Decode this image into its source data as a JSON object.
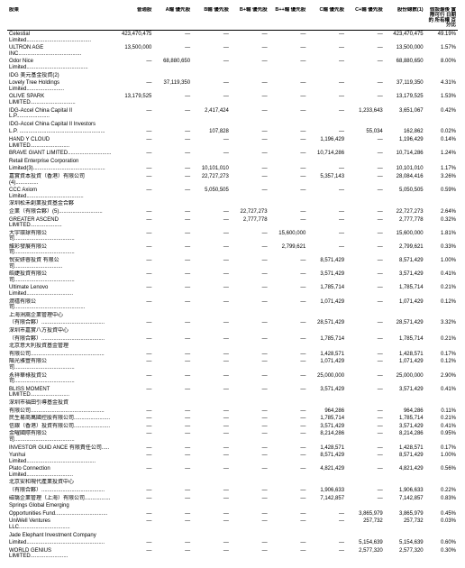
{
  "headers": {
    "name": "股東",
    "ordinary": "普通股",
    "a_pref": "A輪\n優先股",
    "b_pref": "B輪\n優先股",
    "bplus_pref": "B+輪\n優先股",
    "bplusplus_pref": "B++輪\n優先股",
    "c_pref": "C輪\n優先股",
    "cplus_pref": "C+輪\n優先股",
    "total": "股份總數(1)",
    "pct": "假設最後\n實際可行\n日期的\n所有權\n百分比"
  },
  "rows": [
    {
      "name": "Celestial Limited...........................................",
      "ord": "423,470,475",
      "a": "—",
      "b": "—",
      "bp": "—",
      "bpp": "—",
      "c": "—",
      "cp": "—",
      "tot": "423,470,475",
      "pct": "49.19%"
    },
    {
      "name": "ULTRON AGE INC..........................................",
      "ord": "13,500,000",
      "a": "—",
      "b": "—",
      "bp": "—",
      "bpp": "—",
      "c": "—",
      "cp": "—",
      "tot": "13,500,000",
      "pct": "1.57%"
    },
    {
      "name": "Odor Nice Limited.........................................",
      "ord": "—",
      "a": "68,880,650",
      "b": "—",
      "bp": "—",
      "bpp": "—",
      "c": "—",
      "cp": "—",
      "tot": "68,880,650",
      "pct": "8.00%"
    },
    {
      "name": "IDG 美元基金投資(2)",
      "ord": "",
      "a": "",
      "b": "",
      "bp": "",
      "bpp": "",
      "c": "",
      "cp": "",
      "tot": "",
      "pct": ""
    },
    {
      "name": "Lovely Tree Holdings Limited.........................",
      "ord": "—",
      "a": "37,119,350",
      "b": "—",
      "bp": "—",
      "bpp": "—",
      "c": "—",
      "cp": "—",
      "tot": "37,119,350",
      "pct": "4.31%"
    },
    {
      "name": "OLIVE SPARK LIMITED..............................",
      "ord": "13,179,525",
      "a": "—",
      "b": "—",
      "bp": "—",
      "bpp": "—",
      "c": "—",
      "cp": "—",
      "tot": "13,179,525",
      "pct": "1.53%"
    },
    {
      "name": "IDG-Accel China Capital II L.P......................",
      "ord": "—",
      "a": "—",
      "b": "2,417,424",
      "bp": "—",
      "bpp": "—",
      "c": "—",
      "cp": "1,233,643",
      "tot": "3,651,067",
      "pct": "0.42%"
    },
    {
      "name": "IDG-Accel China Capital II Investors",
      "ord": "",
      "a": "",
      "b": "",
      "bp": "",
      "bpp": "",
      "c": "",
      "cp": "",
      "tot": "",
      "pct": ""
    },
    {
      "name": "  L.P. .........................................................",
      "ord": "—",
      "a": "—",
      "b": "107,828",
      "bp": "—",
      "bpp": "—",
      "c": "—",
      "cp": "55,034",
      "tot": "162,862",
      "pct": "0.02%"
    },
    {
      "name": "HAND Y CLOUD LIMITED..........................",
      "ord": "—",
      "a": "—",
      "b": "—",
      "bp": "—",
      "bpp": "—",
      "c": "1,196,429",
      "cp": "—",
      "tot": "1,196,429",
      "pct": "0.14%"
    },
    {
      "name": "BRAVE GIANT LIMITED.............................",
      "ord": "—",
      "a": "—",
      "b": "—",
      "bp": "—",
      "bpp": "—",
      "c": "10,714,286",
      "cp": "—",
      "tot": "10,714,286",
      "pct": "1.24%"
    },
    {
      "name": "Retail Enterprise Corporation",
      "ord": "",
      "a": "",
      "b": "",
      "bp": "",
      "bpp": "",
      "c": "",
      "cp": "",
      "tot": "",
      "pct": ""
    },
    {
      "name": "  Limited(3)................................................",
      "ord": "—",
      "a": "—",
      "b": "10,101,010",
      "bp": "—",
      "bpp": "—",
      "c": "—",
      "cp": "—",
      "tot": "10,101,010",
      "pct": "1.17%"
    },
    {
      "name": "嘉實資本投資（香港）有限公司(4)...............",
      "ord": "—",
      "a": "—",
      "b": "22,727,273",
      "bp": "—",
      "bpp": "—",
      "c": "5,357,143",
      "cp": "—",
      "tot": "28,084,416",
      "pct": "3.26%"
    },
    {
      "name": "CCC Axiom Limited......................................",
      "ord": "—",
      "a": "—",
      "b": "5,050,505",
      "bp": "—",
      "bpp": "—",
      "c": "—",
      "cp": "—",
      "tot": "5,050,505",
      "pct": "0.59%"
    },
    {
      "name": "深圳松禾創業投資基金合夥",
      "ord": "",
      "a": "",
      "b": "",
      "bp": "",
      "bpp": "",
      "c": "",
      "cp": "",
      "tot": "",
      "pct": ""
    },
    {
      "name": "  企業（有限合夥）(5).............................",
      "ord": "—",
      "a": "—",
      "b": "—",
      "bp": "22,727,273",
      "bpp": "—",
      "c": "—",
      "cp": "—",
      "tot": "22,727,273",
      "pct": "2.64%"
    },
    {
      "name": "GREATER ASCEND LIMITED.....................",
      "ord": "—",
      "a": "—",
      "b": "—",
      "bp": "2,777,778",
      "bpp": "—",
      "c": "—",
      "cp": "—",
      "tot": "2,777,778",
      "pct": "0.32%"
    },
    {
      "name": "大宇環球有限公司........................................",
      "ord": "—",
      "a": "—",
      "b": "—",
      "bp": "—",
      "bpp": "15,600,000",
      "c": "—",
      "cp": "—",
      "tot": "15,600,000",
      "pct": "1.81%"
    },
    {
      "name": "維彩發展有限公司........................................",
      "ord": "—",
      "a": "—",
      "b": "—",
      "bp": "—",
      "bpp": "2,799,621",
      "c": "—",
      "cp": "—",
      "tot": "2,799,621",
      "pct": "0.33%"
    },
    {
      "name": "悅安妍睿投資 有限公司................................",
      "ord": "—",
      "a": "—",
      "b": "—",
      "bp": "—",
      "bpp": "—",
      "c": "8,571,429",
      "cp": "—",
      "tot": "8,571,429",
      "pct": "1.00%"
    },
    {
      "name": "皓婕投資有限公司........................................",
      "ord": "—",
      "a": "—",
      "b": "—",
      "bp": "—",
      "bpp": "—",
      "c": "3,571,429",
      "cp": "—",
      "tot": "3,571,429",
      "pct": "0.41%"
    },
    {
      "name": "Ultimate Lenovo Limited...............................",
      "ord": "—",
      "a": "—",
      "b": "—",
      "bp": "—",
      "bpp": "—",
      "c": "1,785,714",
      "cp": "—",
      "tot": "1,785,714",
      "pct": "0.21%"
    },
    {
      "name": "潤禧有限公司...............................................",
      "ord": "—",
      "a": "—",
      "b": "—",
      "bp": "—",
      "bpp": "—",
      "c": "1,071,429",
      "cp": "—",
      "tot": "1,071,429",
      "pct": "0.12%"
    },
    {
      "name": "上海洲嵩企業管理中心",
      "ord": "",
      "a": "",
      "b": "",
      "bp": "",
      "bpp": "",
      "c": "",
      "cp": "",
      "tot": "",
      "pct": ""
    },
    {
      "name": "  （有限合夥）..........................................",
      "ord": "—",
      "a": "—",
      "b": "—",
      "bp": "—",
      "bpp": "—",
      "c": "28,571,429",
      "cp": "—",
      "tot": "28,571,429",
      "pct": "3.32%"
    },
    {
      "name": "深圳市嘉實八方投資中心",
      "ord": "",
      "a": "",
      "b": "",
      "bp": "",
      "bpp": "",
      "c": "",
      "cp": "",
      "tot": "",
      "pct": ""
    },
    {
      "name": "  （有限合夥）..........................................",
      "ord": "—",
      "a": "—",
      "b": "—",
      "bp": "—",
      "bpp": "—",
      "c": "1,785,714",
      "cp": "—",
      "tot": "1,785,714",
      "pct": "0.21%"
    },
    {
      "name": "北京意大利投資基金管理",
      "ord": "",
      "a": "",
      "b": "",
      "bp": "",
      "bpp": "",
      "c": "",
      "cp": "",
      "tot": "",
      "pct": ""
    },
    {
      "name": "  有限公司.................................................",
      "ord": "—",
      "a": "—",
      "b": "—",
      "bp": "—",
      "bpp": "—",
      "c": "1,428,571",
      "cp": "—",
      "tot": "1,428,571",
      "pct": "0.17%"
    },
    {
      "name": "陽光雅豐有限公司........................................",
      "ord": "—",
      "a": "—",
      "b": "—",
      "bp": "—",
      "bpp": "—",
      "c": "1,071,429",
      "cp": "—",
      "tot": "1,071,429",
      "pct": "0.12%"
    },
    {
      "name": "永祥華祿投資公司........................................",
      "ord": "—",
      "a": "—",
      "b": "—",
      "bp": "—",
      "bpp": "—",
      "c": "25,000,000",
      "cp": "—",
      "tot": "25,000,000",
      "pct": "2.90%"
    },
    {
      "name": "BLISS MOMENT LIMITED..........................",
      "ord": "—",
      "a": "—",
      "b": "—",
      "bp": "—",
      "bpp": "—",
      "c": "3,571,429",
      "cp": "—",
      "tot": "3,571,429",
      "pct": "0.41%"
    },
    {
      "name": "深圳市福田引導基金投資",
      "ord": "",
      "a": "",
      "b": "",
      "bp": "",
      "bpp": "",
      "c": "",
      "cp": "",
      "tot": "",
      "pct": ""
    },
    {
      "name": "  有限公司.................................................",
      "ord": "—",
      "a": "—",
      "b": "—",
      "bp": "—",
      "bpp": "—",
      "c": "964,286",
      "cp": "—",
      "tot": "964,286",
      "pct": "0.11%"
    },
    {
      "name": "民生易商萬國控股有限公司........................",
      "ord": "—",
      "a": "—",
      "b": "—",
      "bp": "—",
      "bpp": "—",
      "c": "1,785,714",
      "cp": "—",
      "tot": "1,785,714",
      "pct": "0.21%"
    },
    {
      "name": "信銀（香港）投資有限公司........................",
      "ord": "—",
      "a": "—",
      "b": "—",
      "bp": "—",
      "bpp": "—",
      "c": "3,571,429",
      "cp": "—",
      "tot": "3,571,429",
      "pct": "0.41%"
    },
    {
      "name": "金曜國際有限公司........................................",
      "ord": "—",
      "a": "—",
      "b": "—",
      "bp": "—",
      "bpp": "—",
      "c": "8,214,286",
      "cp": "—",
      "tot": "8,214,286",
      "pct": "0.95%"
    },
    {
      "name": "INVESTOR GUID ANCE 有限責任公司.....",
      "ord": "—",
      "a": "—",
      "b": "—",
      "bp": "—",
      "bpp": "—",
      "c": "1,428,571",
      "cp": "—",
      "tot": "1,428,571",
      "pct": "0.17%"
    },
    {
      "name": "Yunhui Limited..............................................",
      "ord": "—",
      "a": "—",
      "b": "—",
      "bp": "—",
      "bpp": "—",
      "c": "8,571,429",
      "cp": "—",
      "tot": "8,571,429",
      "pct": "1.00%"
    },
    {
      "name": "Plato Connection Limited...............................",
      "ord": "—",
      "a": "—",
      "b": "—",
      "bp": "—",
      "bpp": "—",
      "c": "4,821,429",
      "cp": "—",
      "tot": "4,821,429",
      "pct": "0.56%"
    },
    {
      "name": "北京安和現代產業投資中心",
      "ord": "",
      "a": "",
      "b": "",
      "bp": "",
      "bpp": "",
      "c": "",
      "cp": "",
      "tot": "",
      "pct": ""
    },
    {
      "name": "  （有限合夥）..........................................",
      "ord": "—",
      "a": "—",
      "b": "—",
      "bp": "—",
      "bpp": "—",
      "c": "1,906,633",
      "cp": "—",
      "tot": "1,906,633",
      "pct": "0.22%"
    },
    {
      "name": "磁翳企業管理（上海）有限公司.................",
      "ord": "—",
      "a": "—",
      "b": "—",
      "bp": "—",
      "bpp": "—",
      "c": "7,142,857",
      "cp": "—",
      "tot": "7,142,857",
      "pct": "0.83%"
    },
    {
      "name": "Springs Global Emerging",
      "ord": "",
      "a": "",
      "b": "",
      "bp": "",
      "bpp": "",
      "c": "",
      "cp": "",
      "tot": "",
      "pct": ""
    },
    {
      "name": "  Opportunities Fund...................................",
      "ord": "—",
      "a": "—",
      "b": "—",
      "bp": "—",
      "bpp": "—",
      "c": "—",
      "cp": "3,865,979",
      "tot": "3,865,979",
      "pct": "0.45%"
    },
    {
      "name": "UniWell Ventures LLC..................................",
      "ord": "—",
      "a": "—",
      "b": "—",
      "bp": "—",
      "bpp": "—",
      "c": "—",
      "cp": "257,732",
      "tot": "257,732",
      "pct": "0.03%"
    },
    {
      "name": "Jade Elephant Investment Company",
      "ord": "",
      "a": "",
      "b": "",
      "bp": "",
      "bpp": "",
      "c": "",
      "cp": "",
      "tot": "",
      "pct": ""
    },
    {
      "name": "  Limited....................................................",
      "ord": "—",
      "a": "—",
      "b": "—",
      "bp": "—",
      "bpp": "—",
      "c": "—",
      "cp": "5,154,639",
      "tot": "5,154,639",
      "pct": "0.60%"
    },
    {
      "name": "WORLD GENIUS LIMITED.........................",
      "ord": "—",
      "a": "—",
      "b": "—",
      "bp": "—",
      "bpp": "—",
      "c": "—",
      "cp": "2,577,320",
      "tot": "2,577,320",
      "pct": "0.30%"
    }
  ]
}
